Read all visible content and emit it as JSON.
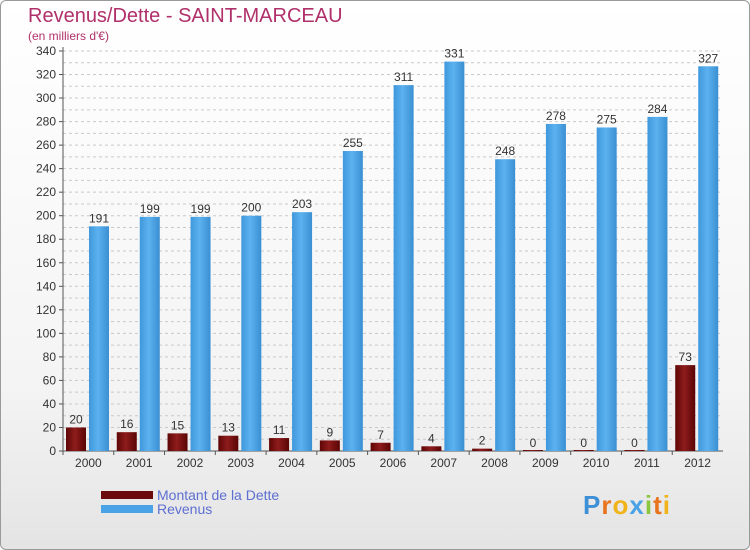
{
  "title": "Revenus/Dette - SAINT-MARCEAU",
  "subtitle": "(en milliers d'€)",
  "chart_data": {
    "type": "bar",
    "title": "Revenus/Dette - SAINT-MARCEAU",
    "ylabel": "(en milliers d'€)",
    "xlabel": "",
    "categories": [
      "2000",
      "2001",
      "2002",
      "2003",
      "2004",
      "2005",
      "2006",
      "2007",
      "2008",
      "2009",
      "2010",
      "2011",
      "2012"
    ],
    "series": [
      {
        "name": "Montant de la Dette",
        "color": "#7a0e0e",
        "values": [
          20,
          16,
          15,
          13,
          11,
          9,
          7,
          4,
          2,
          0,
          0,
          0,
          73
        ]
      },
      {
        "name": "Revenus",
        "color": "#4aa3e6",
        "values": [
          191,
          199,
          199,
          200,
          203,
          255,
          311,
          331,
          248,
          278,
          275,
          284,
          327
        ]
      }
    ],
    "ylim": [
      0,
      340
    ],
    "yticks": [
      0,
      20,
      40,
      60,
      80,
      100,
      120,
      140,
      160,
      180,
      200,
      220,
      240,
      260,
      280,
      300,
      320,
      340
    ],
    "grid": true,
    "legend": "bottom-left"
  },
  "legend": {
    "items": [
      {
        "label": "Montant de la Dette",
        "color": "#6b0a0a"
      },
      {
        "label": "Revenus",
        "color": "#4aa3e6"
      }
    ]
  },
  "logo": {
    "letters": [
      "P",
      "r",
      "o",
      "x",
      "i",
      "t",
      "i"
    ],
    "colors": [
      "#3d8fd6",
      "#e8741e",
      "#f0b31a",
      "#4aa3e6",
      "#8cc63f",
      "#e8741e",
      "#f0b31a"
    ]
  }
}
